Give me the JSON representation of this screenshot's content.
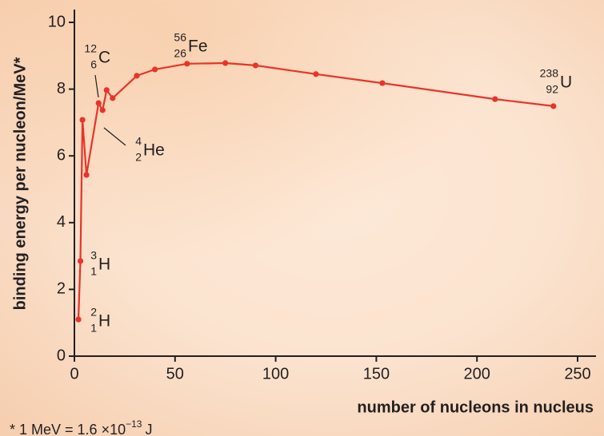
{
  "chart_data": {
    "type": "line",
    "x_label": "number of nucleons in nucleus",
    "y_label": "binding energy per nucleon/MeV*",
    "xlim": [
      0,
      259
    ],
    "ylim": [
      0,
      10.4
    ],
    "xticks": [
      0,
      50,
      100,
      150,
      200,
      250
    ],
    "yticks": [
      0,
      2,
      4,
      6,
      8,
      10
    ],
    "color": "#e8342a",
    "x": [
      2,
      3,
      4,
      6,
      12,
      14,
      16,
      19,
      31,
      40,
      56,
      75,
      90,
      120,
      153,
      209,
      238
    ],
    "values": [
      1.1,
      2.85,
      7.08,
      5.43,
      7.58,
      7.37,
      7.97,
      7.73,
      8.4,
      8.59,
      8.76,
      8.78,
      8.71,
      8.45,
      8.18,
      7.7,
      7.49
    ],
    "annotations": [
      {
        "mass": "2",
        "atomic": "1",
        "symbol": "H"
      },
      {
        "mass": "3",
        "atomic": "1",
        "symbol": "H"
      },
      {
        "mass": "4",
        "atomic": "2",
        "symbol": "He"
      },
      {
        "mass": "12",
        "atomic": "6",
        "symbol": "C"
      },
      {
        "mass": "56",
        "atomic": "26",
        "symbol": "Fe"
      },
      {
        "mass": "238",
        "atomic": "92",
        "symbol": "U"
      }
    ],
    "footnote": {
      "text": "* 1 MeV = 1.6 ×10",
      "exponent": "−13",
      "unit": "J"
    }
  }
}
